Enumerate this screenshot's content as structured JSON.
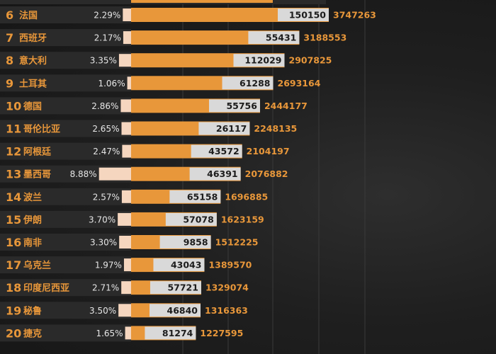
{
  "colors": {
    "bar": "#e8973a",
    "cfr_bar": "#f5d6bf",
    "deaths_box": "#d9d9d9",
    "row_bg": "#2a2a2a"
  },
  "chart_data": {
    "type": "bar",
    "series": [
      {
        "values": [
          150150,
          55431,
          112029,
          61288,
          55756,
          26117,
          43572,
          46391,
          65158,
          57078,
          9858,
          43043,
          57721,
          46840,
          81274
        ]
      },
      {
        "values": [
          3747263,
          3188553,
          2907825,
          2693164,
          2444177,
          2248135,
          2104197,
          2076882,
          1696885,
          1623159,
          1512225,
          1389570,
          1329074,
          1316363,
          1227595
        ]
      },
      {
        "values": [
          2.29,
          2.17,
          3.35,
          1.06,
          2.86,
          2.65,
          2.47,
          8.88,
          2.57,
          3.7,
          3.3,
          1.97,
          2.71,
          3.5,
          1.65
        ]
      }
    ],
    "rows": [
      {
        "rank": "6",
        "country": "法国",
        "cfr": "2.29%",
        "deaths": "150150",
        "cases": "3747263"
      },
      {
        "rank": "7",
        "country": "西班牙",
        "cfr": "2.17%",
        "deaths": "55431",
        "cases": "3188553"
      },
      {
        "rank": "8",
        "country": "意大利",
        "cfr": "3.35%",
        "deaths": "112029",
        "cases": "2907825"
      },
      {
        "rank": "9",
        "country": "土耳其",
        "cfr": "1.06%",
        "deaths": "61288",
        "cases": "2693164"
      },
      {
        "rank": "10",
        "country": "德国",
        "cfr": "2.86%",
        "deaths": "55756",
        "cases": "2444177"
      },
      {
        "rank": "11",
        "country": "哥伦比亚",
        "cfr": "2.65%",
        "deaths": "26117",
        "cases": "2248135"
      },
      {
        "rank": "12",
        "country": "阿根廷",
        "cfr": "2.47%",
        "deaths": "43572",
        "cases": "2104197"
      },
      {
        "rank": "13",
        "country": "墨西哥",
        "cfr": "8.88%",
        "deaths": "46391",
        "cases": "2076882"
      },
      {
        "rank": "14",
        "country": "波兰",
        "cfr": "2.57%",
        "deaths": "65158",
        "cases": "1696885"
      },
      {
        "rank": "15",
        "country": "伊朗",
        "cfr": "3.70%",
        "deaths": "57078",
        "cases": "1623159"
      },
      {
        "rank": "16",
        "country": "南非",
        "cfr": "3.30%",
        "deaths": "9858",
        "cases": "1512225"
      },
      {
        "rank": "17",
        "country": "乌克兰",
        "cfr": "1.97%",
        "deaths": "43043",
        "cases": "1389570"
      },
      {
        "rank": "18",
        "country": "印度尼西亚",
        "cfr": "2.71%",
        "deaths": "57721",
        "cases": "1329074"
      },
      {
        "rank": "19",
        "country": "秘鲁",
        "cfr": "3.50%",
        "deaths": "46840",
        "cases": "1316363"
      },
      {
        "rank": "20",
        "country": "捷克",
        "cfr": "1.65%",
        "deaths": "81274",
        "cases": "1227595"
      }
    ]
  }
}
